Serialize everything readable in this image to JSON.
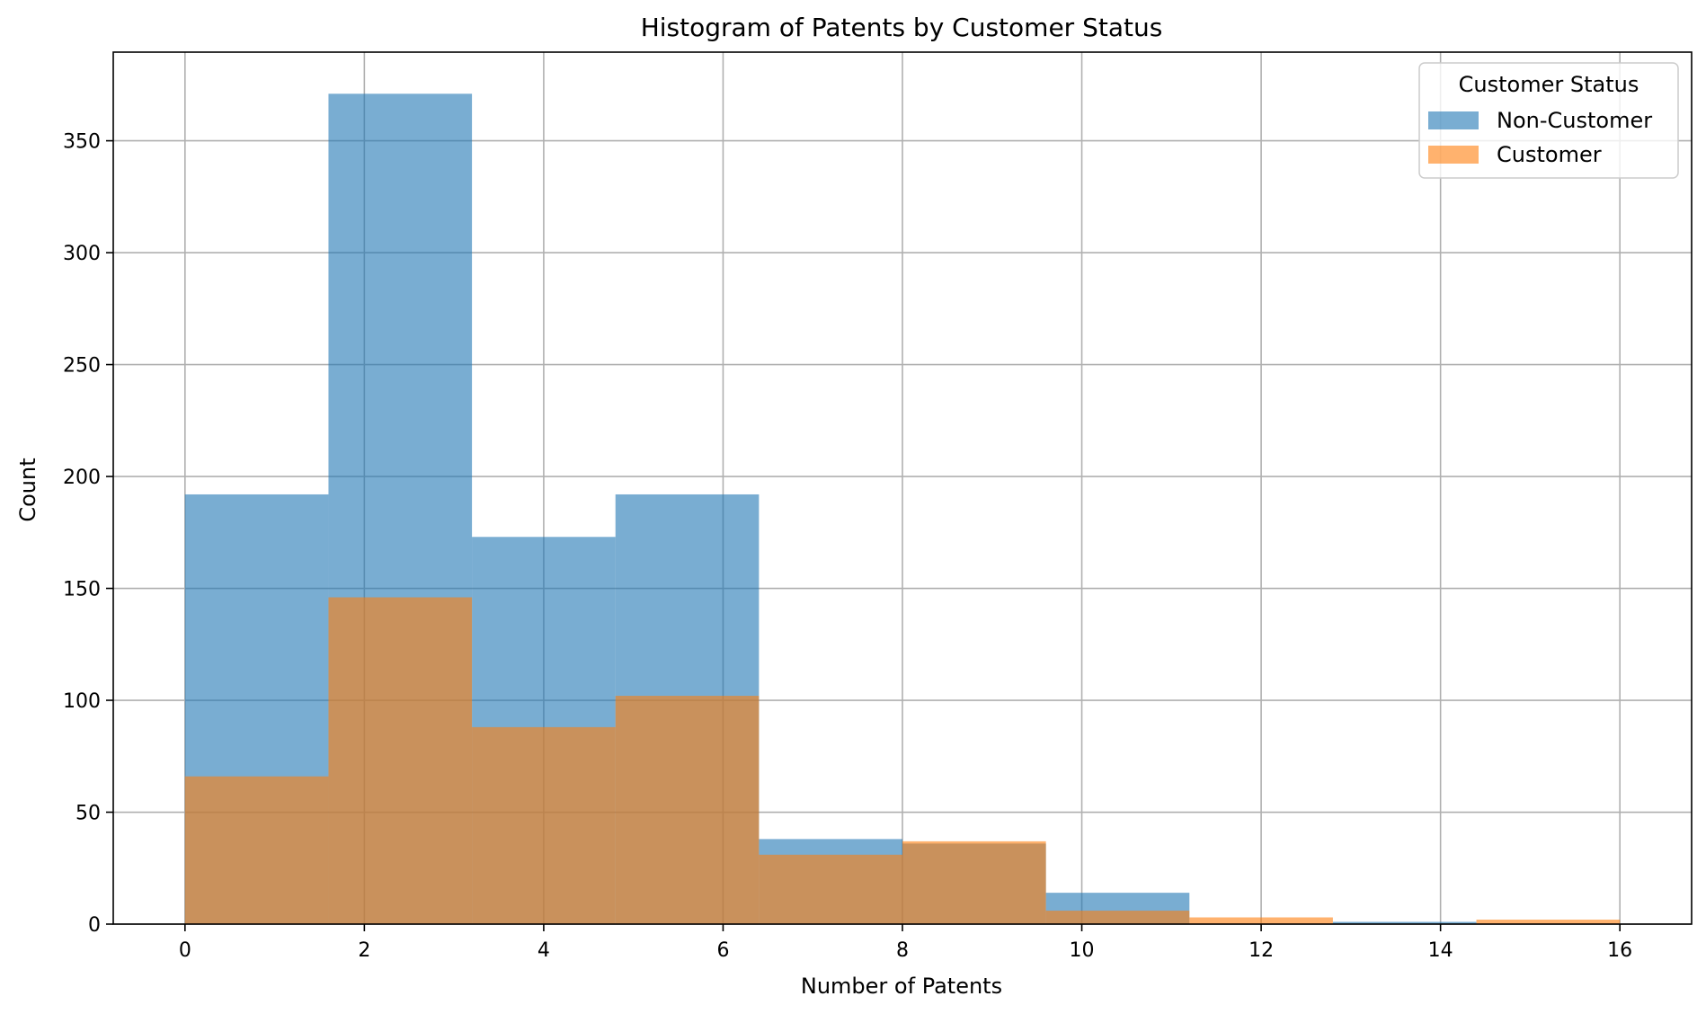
{
  "chart_data": {
    "type": "bar",
    "title": "Histogram of Patents by Customer Status",
    "xlabel": "Number of Patents",
    "ylabel": "Count",
    "xlim": [
      -0.8,
      16.8
    ],
    "ylim": [
      0,
      389.6
    ],
    "xticks": [
      0,
      2,
      4,
      6,
      8,
      10,
      12,
      14,
      16
    ],
    "yticks": [
      0,
      50,
      100,
      150,
      200,
      250,
      300,
      350
    ],
    "grid": true,
    "bin_edges": [
      0,
      1.6,
      3.2,
      4.8,
      6.4,
      8,
      9.6,
      11.2,
      12.8,
      14.4,
      16
    ],
    "legend": {
      "title": "Customer Status",
      "position": "top-right"
    },
    "series": [
      {
        "name": "Non-Customer",
        "color": "#1f77b4",
        "alpha": 0.6,
        "values": [
          192,
          371,
          173,
          192,
          38,
          36,
          14,
          0,
          1,
          0
        ]
      },
      {
        "name": "Customer",
        "color": "#ff7f0e",
        "alpha": 0.6,
        "values": [
          66,
          146,
          88,
          102,
          31,
          37,
          6,
          3,
          0,
          2
        ]
      }
    ]
  }
}
